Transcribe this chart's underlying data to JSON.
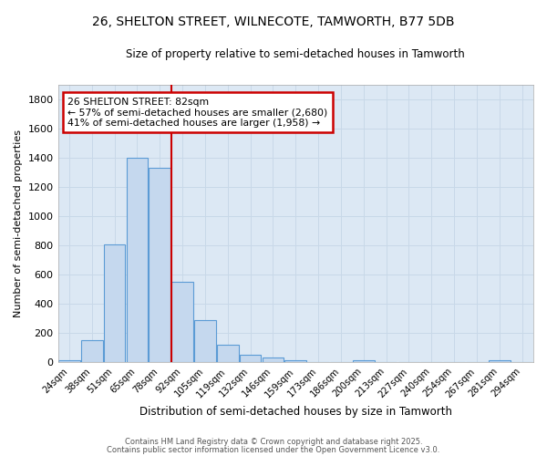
{
  "title": "26, SHELTON STREET, WILNECOTE, TAMWORTH, B77 5DB",
  "subtitle": "Size of property relative to semi-detached houses in Tamworth",
  "xlabel": "Distribution of semi-detached houses by size in Tamworth",
  "ylabel": "Number of semi-detached properties",
  "categories": [
    "24sqm",
    "38sqm",
    "51sqm",
    "65sqm",
    "78sqm",
    "92sqm",
    "105sqm",
    "119sqm",
    "132sqm",
    "146sqm",
    "159sqm",
    "173sqm",
    "186sqm",
    "200sqm",
    "213sqm",
    "227sqm",
    "240sqm",
    "254sqm",
    "267sqm",
    "281sqm",
    "294sqm"
  ],
  "values": [
    15,
    150,
    805,
    1400,
    1330,
    550,
    290,
    120,
    50,
    30,
    15,
    0,
    0,
    10,
    0,
    0,
    0,
    0,
    0,
    10,
    0
  ],
  "bar_color": "#c5d8ee",
  "bar_edge_color": "#5b9bd5",
  "vline_x": 4.5,
  "annotation_title": "26 SHELTON STREET: 82sqm",
  "annotation_line1": "← 57% of semi-detached houses are smaller (2,680)",
  "annotation_line2": "41% of semi-detached houses are larger (1,958) →",
  "annotation_box_color": "#ffffff",
  "annotation_box_edge_color": "#cc0000",
  "vline_color": "#cc0000",
  "grid_color": "#c8d8e8",
  "plot_bg_color": "#dce8f4",
  "fig_bg_color": "#ffffff",
  "ylim": [
    0,
    1900
  ],
  "yticks": [
    0,
    200,
    400,
    600,
    800,
    1000,
    1200,
    1400,
    1600,
    1800
  ],
  "title_fontsize": 10,
  "subtitle_fontsize": 8.5,
  "footer1": "Contains HM Land Registry data © Crown copyright and database right 2025.",
  "footer2": "Contains public sector information licensed under the Open Government Licence v3.0."
}
